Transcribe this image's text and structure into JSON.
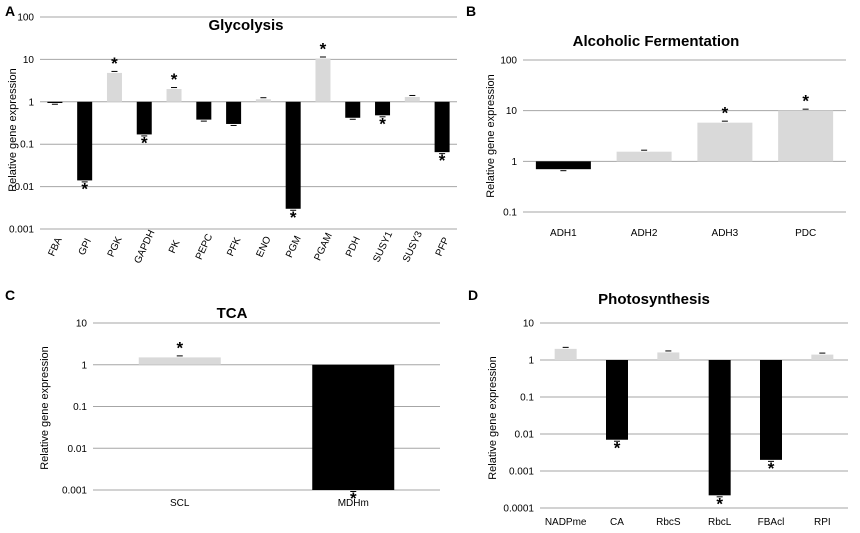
{
  "figure": {
    "colors": {
      "dark": "#000000",
      "light": "#d9d9d9",
      "grid": "#a6a6a6"
    }
  },
  "chart_data": [
    {
      "panel": "A",
      "type": "bar",
      "title": "Glycolysis",
      "ylabel": "Relative gene expression",
      "yscale": "log",
      "ylim": [
        0.001,
        100
      ],
      "yticks": [
        "100",
        "10",
        "1",
        "0.1",
        "0.01",
        "0.001"
      ],
      "categories": [
        "FBA",
        "GPI",
        "PGK",
        "GAPDH",
        "PK",
        "PEPC",
        "PFK",
        "ENO",
        "PGM",
        "PGAM",
        "PDH",
        "SUSY1",
        "SUSY3",
        "PFP"
      ],
      "values": [
        0.95,
        0.014,
        4.8,
        0.17,
        2.0,
        0.38,
        0.3,
        1.15,
        0.003,
        10.5,
        0.42,
        0.48,
        1.3,
        0.065
      ],
      "significant": [
        false,
        true,
        true,
        true,
        true,
        false,
        false,
        false,
        true,
        true,
        false,
        true,
        false,
        true
      ],
      "star": "*"
    },
    {
      "panel": "B",
      "type": "bar",
      "title": "Alcoholic Fermentation",
      "ylabel": "Relative  gene expression",
      "yscale": "log",
      "ylim": [
        0.1,
        100
      ],
      "yticks": [
        "100",
        "10",
        "1",
        "0.1"
      ],
      "categories": [
        "ADH1",
        "ADH2",
        "ADH3",
        "PDC"
      ],
      "values": [
        0.7,
        1.55,
        5.8,
        10.0
      ],
      "significant": [
        false,
        false,
        true,
        true
      ],
      "star": "*"
    },
    {
      "panel": "C",
      "type": "bar",
      "title": "TCA",
      "ylabel": "Relative gene expression",
      "yscale": "log",
      "ylim": [
        0.001,
        10
      ],
      "yticks": [
        "10",
        "1",
        "0.1",
        "0.01",
        "0.001"
      ],
      "categories": [
        "SCL",
        "MDHm"
      ],
      "values": [
        1.5,
        0.001
      ],
      "significant": [
        true,
        true
      ],
      "star": "*"
    },
    {
      "panel": "D",
      "type": "bar",
      "title": "Photosynthesis",
      "ylabel": "Relative gene expression",
      "yscale": "log",
      "ylim": [
        0.0001,
        10
      ],
      "yticks": [
        "10",
        "1",
        "0.1",
        "0.01",
        "0.001",
        "0.0001"
      ],
      "categories": [
        "NADPme",
        "CA",
        "RbcS",
        "RbcL",
        "FBAcl",
        "RPI"
      ],
      "values": [
        2.0,
        0.007,
        1.6,
        0.00022,
        0.002,
        1.4
      ],
      "significant": [
        false,
        true,
        false,
        true,
        true,
        false
      ],
      "star": "*"
    }
  ]
}
